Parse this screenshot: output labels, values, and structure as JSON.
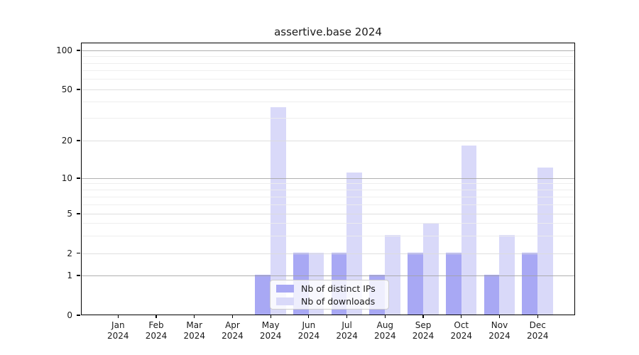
{
  "figure": {
    "title": "assertive.base 2024"
  },
  "chart_data": {
    "type": "bar",
    "title": "assertive.base 2024",
    "categories": [
      "Jan 2024",
      "Feb 2024",
      "Mar 2024",
      "Apr 2024",
      "May 2024",
      "Jun 2024",
      "Jul 2024",
      "Aug 2024",
      "Sep 2024",
      "Oct 2024",
      "Nov 2024",
      "Dec 2024"
    ],
    "x_months": [
      "Jan",
      "Feb",
      "Mar",
      "Apr",
      "May",
      "Jun",
      "Jul",
      "Aug",
      "Sep",
      "Oct",
      "Nov",
      "Dec"
    ],
    "x_year": "2024",
    "series": [
      {
        "name": "Nb of distinct IPs",
        "color": "#a8a8f4",
        "values": [
          0,
          0,
          0,
          0,
          1,
          2,
          2,
          1,
          2,
          2,
          1,
          2
        ]
      },
      {
        "name": "Nb of downloads",
        "color": "#d9d9f9",
        "values": [
          0,
          0,
          0,
          0,
          36,
          2,
          11,
          3,
          4,
          18,
          3,
          12
        ]
      }
    ],
    "y_axis": {
      "scale": "log-like",
      "range": [
        0,
        100
      ],
      "ticks": [
        0,
        1,
        2,
        5,
        10,
        20,
        50,
        100
      ],
      "tick_labels": [
        "0",
        "1",
        "2",
        "5",
        "10",
        "20",
        "50",
        "100"
      ]
    },
    "grid": true,
    "legend": {
      "position": "lower-center",
      "entries": [
        "Nb of distinct IPs",
        "Nb of downloads"
      ]
    }
  },
  "colors": {
    "ips_bar": "#a8a8f4",
    "downloads_bar": "#d9d9f9",
    "grid_major": "#a2a2a2",
    "grid_mid": "#dcdcdc",
    "grid_minor": "#ececec",
    "axis": "#000000",
    "background": "#ffffff",
    "text": "#1a1a1a"
  }
}
